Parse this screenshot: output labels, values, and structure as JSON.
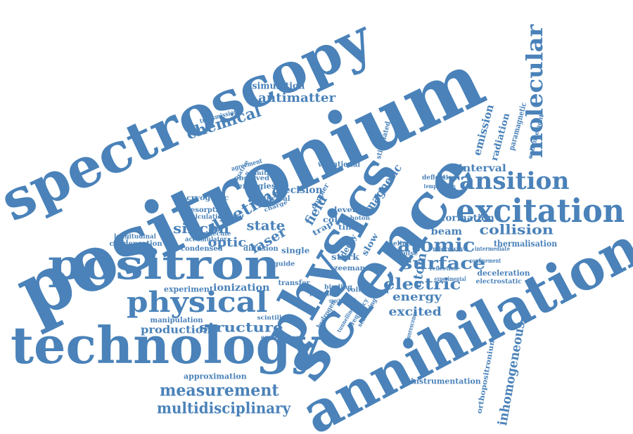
{
  "color": "#4a82b9",
  "words": [
    "positronium",
    "spectroscopy",
    "science",
    "physics",
    "annihilation",
    "technology",
    "positron",
    "physical",
    "excitation",
    "molecular",
    "transition",
    "atomic",
    "surface",
    "measurement",
    "multidisciplinary",
    "electric",
    "lifetime",
    "chemical",
    "antimatter",
    "structure",
    "silicon",
    "optic",
    "laser",
    "state",
    "collision",
    "inhomogeneous",
    "field",
    "magnetic",
    "excited",
    "energy",
    "atom",
    "production",
    "ionization",
    "simulation",
    "precision",
    "interval",
    "formation",
    "emission",
    "radiation",
    "beam",
    "thermalisation",
    "deceleration",
    "instrumentation",
    "orthopositronium",
    "approximation",
    "manipulation",
    "experiment",
    "condensation",
    "condensed",
    "longitudinal",
    "cryogenic",
    "desorption",
    "energies",
    "calculation",
    "accumulator",
    "observed",
    "principal",
    "vibrational",
    "doppler",
    "stark",
    "zeeman",
    "slow",
    "single",
    "diffusion",
    "transfer",
    "reaction",
    "binding",
    "hydrogen",
    "frequency",
    "scattering",
    "tunnelling",
    "scintillator",
    "environment",
    "paramagnetic",
    "enhancement",
    "deflection",
    "temperature",
    "microwave",
    "intermediate",
    "electrostatic",
    "confinement",
    "reflection",
    "experimental",
    "stimulated",
    "impulse",
    "helium",
    "transmission",
    "affinities",
    "agreement",
    "negative",
    "trap",
    "time",
    "cold",
    "photon",
    "level",
    "volume",
    "guide",
    "decay",
    "ground",
    "spectrograph",
    "fluorescence",
    "molecule",
    "charge"
  ]
}
